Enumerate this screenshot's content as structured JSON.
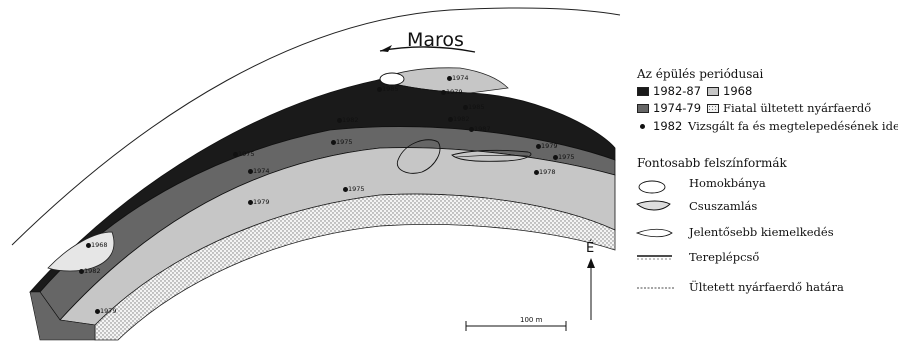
{
  "river_label": "Maros",
  "legend": {
    "periods_title": "Az épülés periódusai",
    "periods": [
      {
        "label": "1982-87",
        "fill": "black"
      },
      {
        "label": "1968",
        "fill": "light-gray"
      },
      {
        "label": "1974-79",
        "fill": "dark-gray"
      },
      {
        "label": "Fiatal ültetett nyárfaerdő",
        "fill": "hatched"
      }
    ],
    "sample_year": "1982",
    "sample_text": "Vizsgált fa és megtelepedésének ideje",
    "forms_title": "Fontosabb felszínformák",
    "forms": [
      "Homokbánya",
      "Csuszamlás",
      "Jelentősebb kiemelkedés",
      "Tereplépcső",
      "Ültetett nyárfaerdő határa"
    ]
  },
  "north_label": "É",
  "scale_label": "100 m",
  "colors": {
    "black": "#1a1a1a",
    "dark_gray": "#666666",
    "light_gray": "#c6c6c6",
    "hatch": "#f0f0f0"
  },
  "samples": [
    {
      "year": "1974"
    },
    {
      "year": "1979"
    },
    {
      "year": "1985"
    },
    {
      "year": "1985"
    },
    {
      "year": "1982"
    },
    {
      "year": "1987"
    },
    {
      "year": "1982"
    },
    {
      "year": "1975"
    },
    {
      "year": "1975"
    },
    {
      "year": "1975"
    },
    {
      "year": "1979"
    },
    {
      "year": "1978"
    },
    {
      "year": "1974"
    },
    {
      "year": "1979"
    },
    {
      "year": "1975"
    },
    {
      "year": "1968"
    },
    {
      "year": "1982"
    },
    {
      "year": "1979"
    }
  ]
}
